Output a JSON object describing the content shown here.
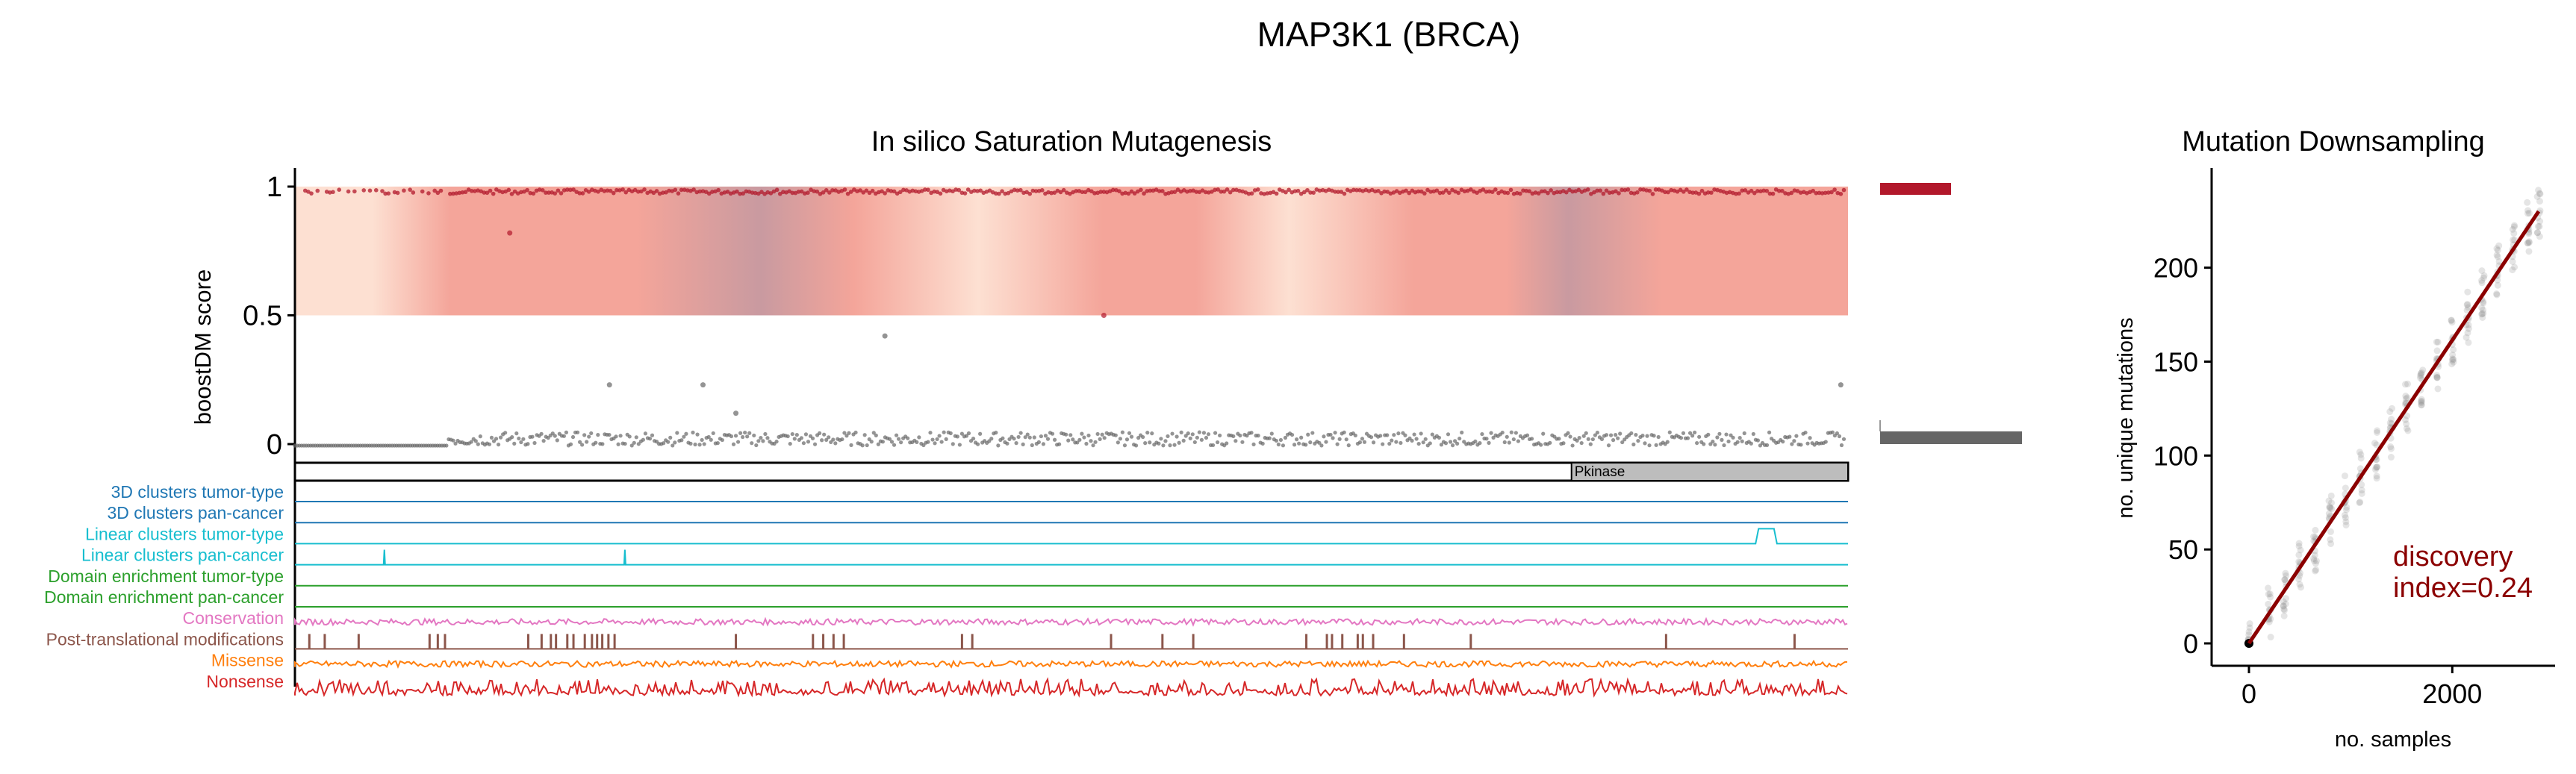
{
  "figure": {
    "title": "MAP3K1 (BRCA)"
  },
  "colors": {
    "driver": "#b2182b",
    "passenger": "#666666",
    "score_band_light": "#fde0d2",
    "score_band_mid": "#f4a59a",
    "score_band_dark": "#c99aa0",
    "track_3d_tumor": "#1f77b4",
    "track_3d_pan": "#1f77b4",
    "track_linear_tumor": "#17becf",
    "track_linear_pan": "#17becf",
    "track_domain_tumor": "#2ca02c",
    "track_domain_pan": "#2ca02c",
    "track_conservation": "#e377c2",
    "track_ptm": "#8c564b",
    "track_missense": "#ff7f0e",
    "track_nonsense": "#d62728",
    "downsampling_line": "#8b0000",
    "discovery_text": "#8b0000",
    "pfam_fill": "#bdbdbd"
  },
  "chart_data": [
    {
      "type": "scatter",
      "title": "In silico Saturation Mutagenesis",
      "ylabel": "boostDM score",
      "xlabel": "",
      "ylim": [
        0,
        1
      ],
      "yticks": [
        "0",
        "0.5",
        "1"
      ],
      "x_range": [
        1,
        1512
      ],
      "score_band_range": [
        0.5,
        1.0
      ],
      "score_band_gradient_stops": [
        {
          "pos": 0.0,
          "shade": "light"
        },
        {
          "pos": 0.05,
          "shade": "light"
        },
        {
          "pos": 0.1,
          "shade": "mid"
        },
        {
          "pos": 0.17,
          "shade": "mid"
        },
        {
          "pos": 0.22,
          "shade": "mid"
        },
        {
          "pos": 0.3,
          "shade": "dark"
        },
        {
          "pos": 0.36,
          "shade": "mid"
        },
        {
          "pos": 0.44,
          "shade": "light"
        },
        {
          "pos": 0.52,
          "shade": "mid"
        },
        {
          "pos": 0.58,
          "shade": "mid"
        },
        {
          "pos": 0.64,
          "shade": "light"
        },
        {
          "pos": 0.72,
          "shade": "mid"
        },
        {
          "pos": 0.78,
          "shade": "mid"
        },
        {
          "pos": 0.82,
          "shade": "dark"
        },
        {
          "pos": 0.88,
          "shade": "mid"
        },
        {
          "pos": 0.95,
          "shade": "mid"
        },
        {
          "pos": 1.0,
          "shade": "mid"
        }
      ],
      "driver_points_score": 0.98,
      "driver_points_density": "continuous along protein, sparse before residue ~150",
      "passenger_points_score": 0.0,
      "outlier_points": [
        {
          "x": 210,
          "y": 0.82
        },
        {
          "x": 575,
          "y": 0.42
        },
        {
          "x": 788,
          "y": 0.5
        },
        {
          "x": 307,
          "y": 0.23
        },
        {
          "x": 398,
          "y": 0.23
        },
        {
          "x": 430,
          "y": 0.12
        },
        {
          "x": 1505,
          "y": 0.23
        }
      ],
      "side_bars": [
        {
          "name": "driver",
          "value": 0.5
        },
        {
          "name": "passenger",
          "value": 1.0
        }
      ],
      "domain": {
        "label": "Pkinase",
        "start": 1243,
        "end": 1512
      },
      "tracks": [
        {
          "label": "3D clusters tumor-type",
          "color_key": "track_3d_tumor",
          "kind": "flat"
        },
        {
          "label": "3D clusters pan-cancer",
          "color_key": "track_3d_pan",
          "kind": "flat"
        },
        {
          "label": "Linear clusters tumor-type",
          "color_key": "track_linear_tumor",
          "kind": "step",
          "peaks": [
            {
              "start": 1425,
              "end": 1440
            }
          ]
        },
        {
          "label": "Linear clusters pan-cancer",
          "color_key": "track_linear_pan",
          "kind": "spikes",
          "positions": [
            88,
            322
          ]
        },
        {
          "label": "Domain enrichment tumor-type",
          "color_key": "track_domain_tumor",
          "kind": "flat"
        },
        {
          "label": "Domain enrichment pan-cancer",
          "color_key": "track_domain_pan",
          "kind": "flat"
        },
        {
          "label": "Conservation",
          "color_key": "track_conservation",
          "kind": "noise"
        },
        {
          "label": "Post-translational modifications",
          "color_key": "track_ptm",
          "kind": "ticks",
          "positions": [
            15,
            30,
            63,
            132,
            140,
            147,
            228,
            241,
            250,
            255,
            266,
            272,
            283,
            290,
            295,
            300,
            306,
            312,
            430,
            505,
            515,
            525,
            535,
            650,
            660,
            795,
            845,
            875,
            985,
            1005,
            1010,
            1020,
            1035,
            1040,
            1050,
            1080,
            1145,
            1335,
            1460
          ]
        },
        {
          "label": "Missense",
          "color_key": "track_missense",
          "kind": "noise"
        },
        {
          "label": "Nonsense",
          "color_key": "track_nonsense",
          "kind": "spiky"
        }
      ]
    },
    {
      "type": "scatter",
      "title": "Mutation Downsampling",
      "xlabel": "no. samples",
      "ylabel": "no. unique mutations",
      "xlim": [
        0,
        2850
      ],
      "ylim": [
        0,
        240
      ],
      "xticks": [
        0,
        2000
      ],
      "yticks": [
        0,
        50,
        100,
        150,
        200
      ],
      "fit_line": {
        "x": [
          0,
          2850
        ],
        "y": [
          0,
          230
        ]
      },
      "sample_points_x": [
        0,
        200,
        350,
        500,
        650,
        800,
        950,
        1100,
        1250,
        1400,
        1550,
        1700,
        1850,
        2000,
        2150,
        2300,
        2450,
        2600,
        2750,
        2850
      ],
      "annotation_line1": "discovery",
      "annotation_line2": "index=0.24"
    }
  ]
}
